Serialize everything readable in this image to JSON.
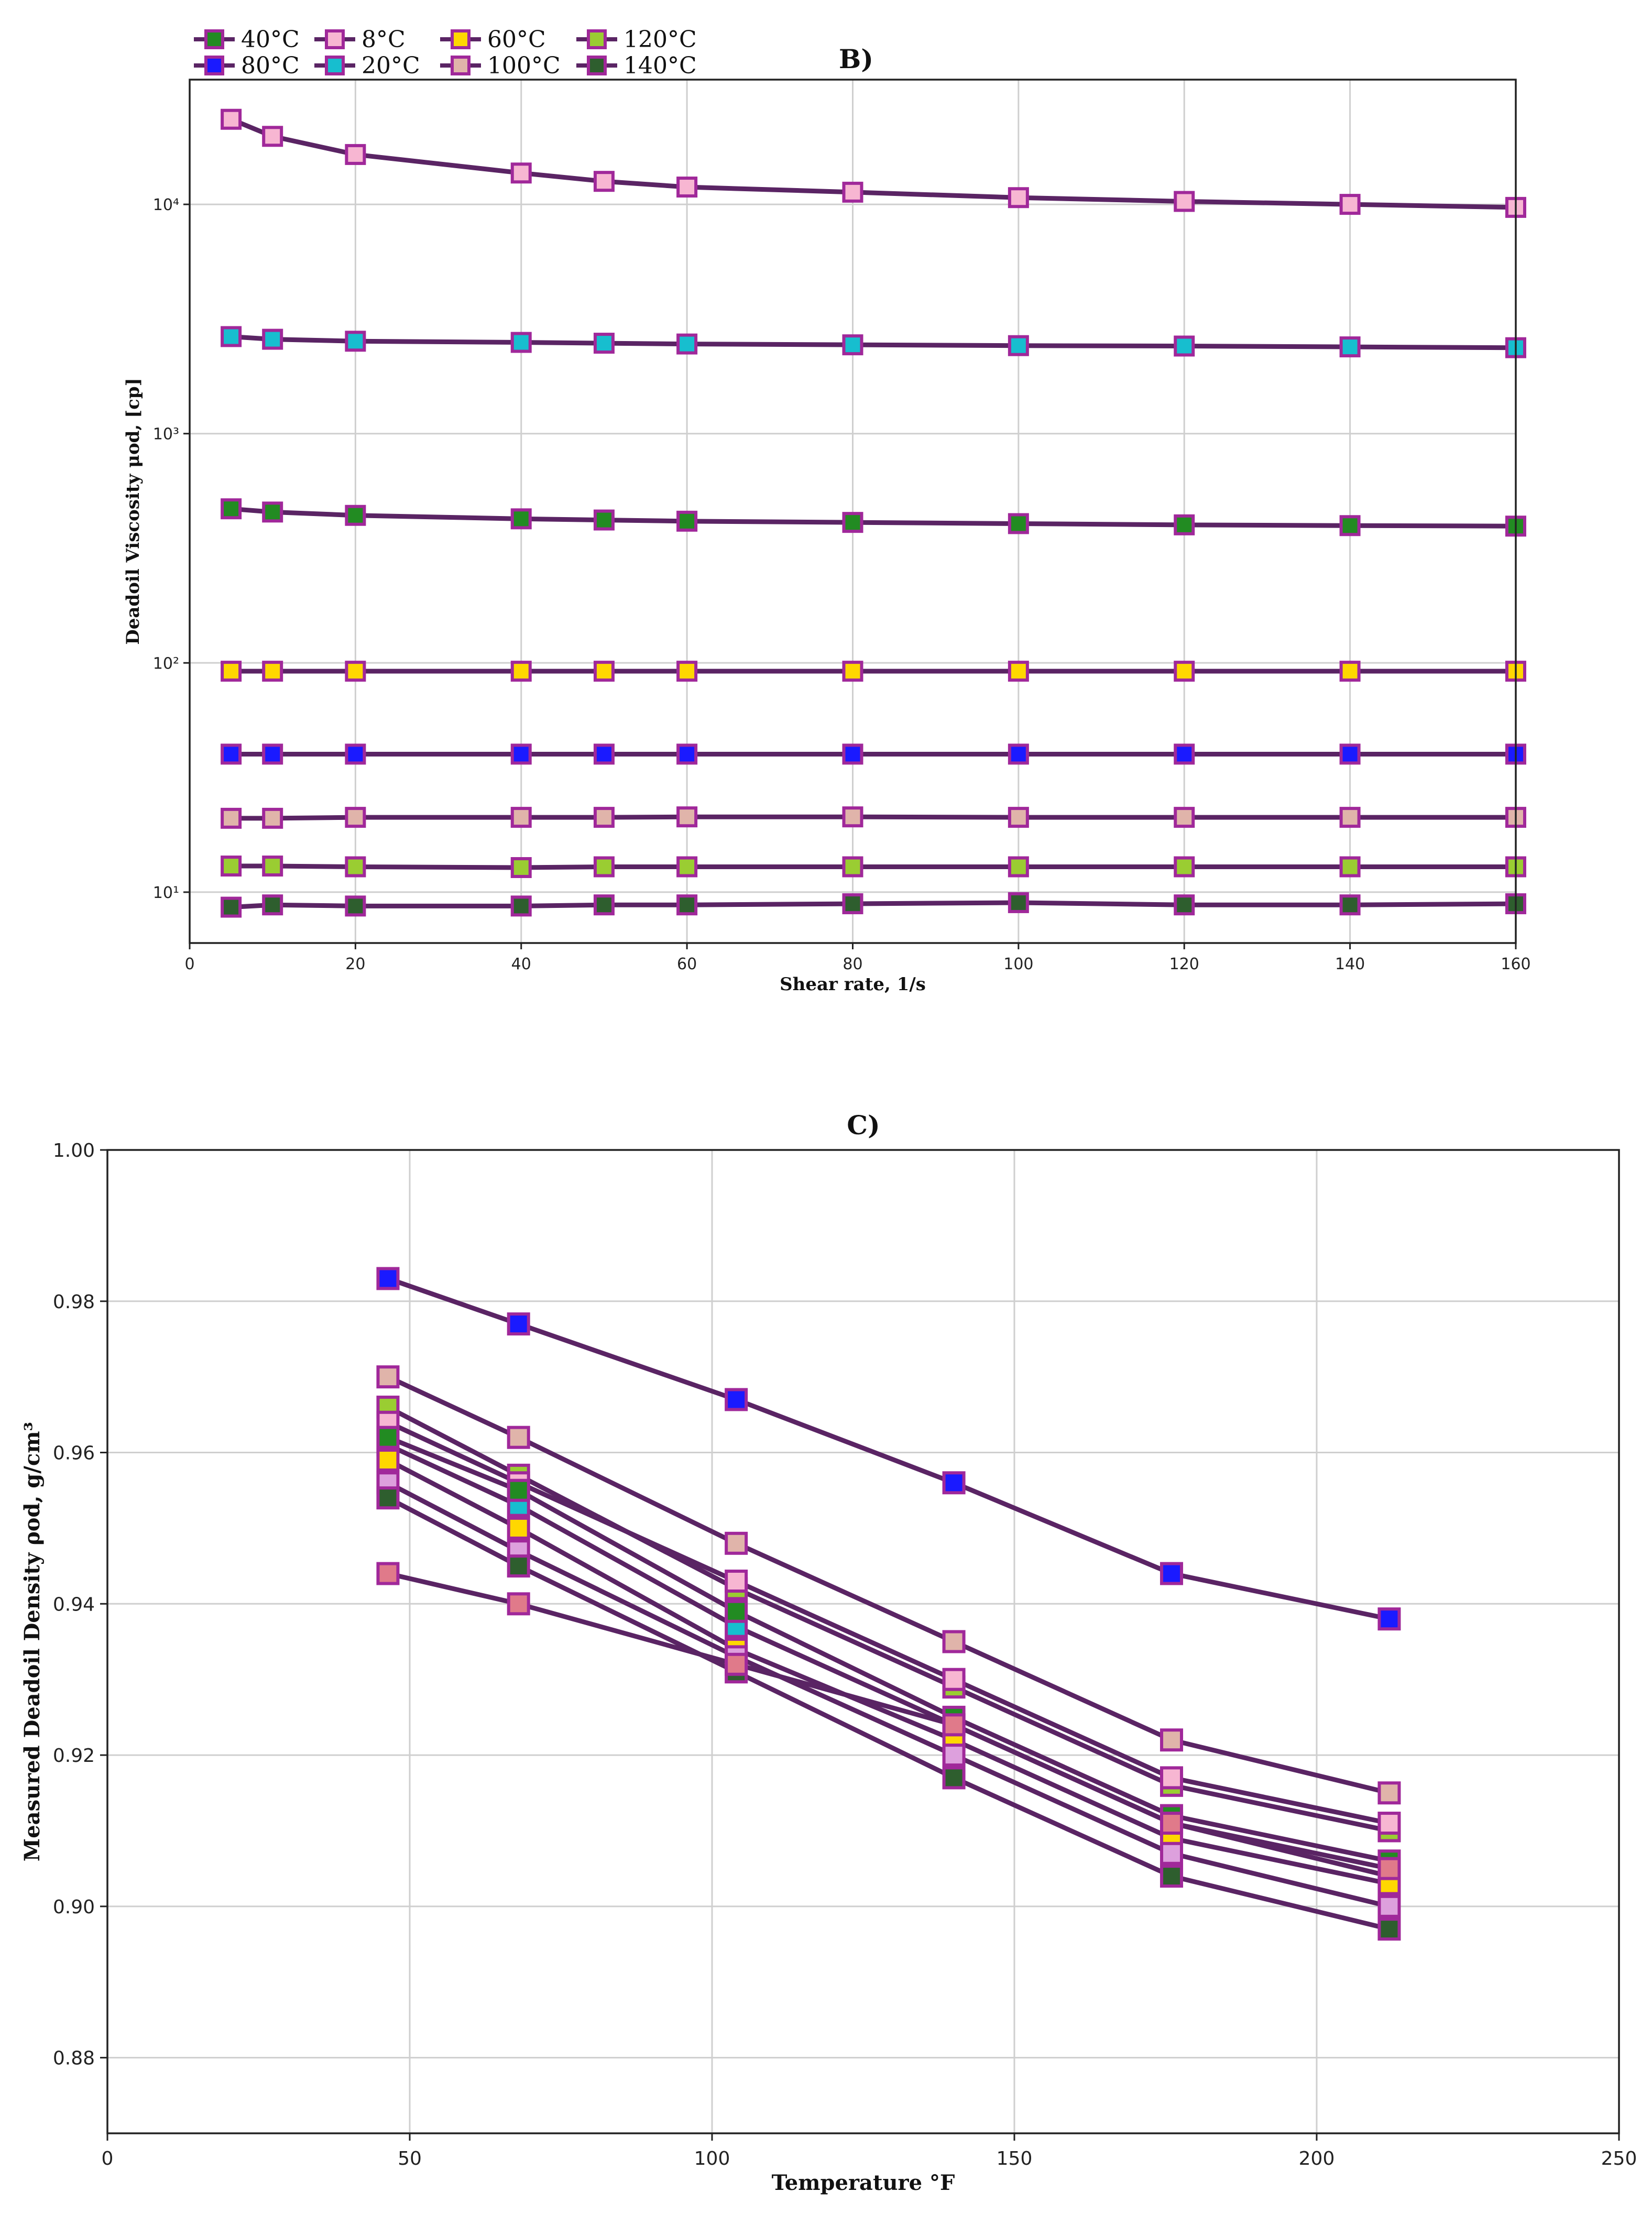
{
  "chart_data": [
    {
      "id": "B",
      "type": "line",
      "title": "B)",
      "xlabel": "Shear rate, 1/s",
      "ylabel": "Deadoil Viscosity μod, [cp]",
      "yscale": "log",
      "xlim": [
        0,
        160
      ],
      "ylim": [
        6,
        35000
      ],
      "xticks": [
        "0",
        "20",
        "40",
        "60",
        "80",
        "100",
        "120",
        "140",
        "160"
      ],
      "xtick_values": [
        0,
        20,
        40,
        60,
        80,
        100,
        120,
        140,
        160
      ],
      "yticks": [
        "10¹",
        "10²",
        "10³",
        "10⁴"
      ],
      "ytick_values": [
        10,
        100,
        1000,
        10000
      ],
      "grid": true,
      "legend": "top-left, outside",
      "x": [
        5,
        10,
        20,
        40,
        50,
        60,
        80,
        100,
        120,
        140,
        160
      ],
      "series": [
        {
          "name": "8°C",
          "color": "#f7b6d2",
          "values": [
            23500,
            19800,
            16500,
            13700,
            12600,
            11900,
            11300,
            10700,
            10300,
            10000,
            9700
          ]
        },
        {
          "name": "20°C",
          "color": "#17becf",
          "values": [
            2650,
            2580,
            2530,
            2500,
            2480,
            2460,
            2440,
            2420,
            2410,
            2390,
            2370
          ]
        },
        {
          "name": "40°C",
          "color": "#228b22",
          "values": [
            470,
            455,
            440,
            425,
            420,
            415,
            410,
            405,
            400,
            397,
            395
          ]
        },
        {
          "name": "60°C",
          "color": "#ffd700",
          "values": [
            92,
            92,
            92,
            92,
            92,
            92,
            92,
            92,
            92,
            92,
            92
          ]
        },
        {
          "name": "80°C",
          "color": "#1a1aff",
          "values": [
            40,
            40,
            40,
            40,
            40,
            40,
            40,
            40,
            40,
            40,
            40
          ]
        },
        {
          "name": "100°C",
          "color": "#e0b4aa",
          "values": [
            21,
            21,
            21.2,
            21.2,
            21.2,
            21.3,
            21.3,
            21.2,
            21.2,
            21.2,
            21.2
          ]
        },
        {
          "name": "120°C",
          "color": "#9acd32",
          "values": [
            13,
            13,
            12.9,
            12.8,
            12.9,
            12.9,
            12.9,
            12.9,
            12.9,
            12.9,
            12.9
          ]
        },
        {
          "name": "140°C",
          "color": "#2e5e2e",
          "values": [
            8.6,
            8.8,
            8.7,
            8.7,
            8.8,
            8.8,
            8.9,
            9.0,
            8.8,
            8.8,
            8.9
          ]
        }
      ],
      "legend_entries": [
        {
          "label": "40°C",
          "color": "#228b22"
        },
        {
          "label": "80°C",
          "color": "#1a1aff"
        },
        {
          "label": "8°C",
          "color": "#f7b6d2"
        },
        {
          "label": "20°C",
          "color": "#17becf"
        },
        {
          "label": "60°C",
          "color": "#ffd700"
        },
        {
          "label": "100°C",
          "color": "#e0b4aa"
        },
        {
          "label": "120°C",
          "color": "#9acd32"
        },
        {
          "label": "140°C",
          "color": "#2e5e2e"
        }
      ]
    },
    {
      "id": "C",
      "type": "line",
      "title": "C)",
      "xlabel": "Temperature °F",
      "ylabel": "Measured Deadoil Density ρod, g/cm³",
      "xlim": [
        0,
        250
      ],
      "ylim": [
        0.87,
        1.0
      ],
      "xticks": [
        "0",
        "50",
        "100",
        "150",
        "200",
        "250"
      ],
      "xtick_values": [
        0,
        50,
        100,
        150,
        200,
        250
      ],
      "yticks": [
        "0.88",
        "0.90",
        "0.92",
        "0.94",
        "0.96",
        "0.98",
        "1.00"
      ],
      "ytick_values": [
        0.88,
        0.9,
        0.92,
        0.94,
        0.96,
        0.98,
        1.0
      ],
      "grid": true,
      "x": [
        46.4,
        68,
        104,
        140,
        176,
        212
      ],
      "series": [
        {
          "color": "#1a1aff",
          "values": [
            0.983,
            0.977,
            0.967,
            0.956,
            0.944,
            0.938
          ]
        },
        {
          "color": "#e0b4aa",
          "values": [
            0.97,
            0.962,
            0.948,
            0.935,
            0.922,
            0.915
          ]
        },
        {
          "color": "#9acd32",
          "values": [
            0.966,
            0.957,
            0.942,
            0.929,
            0.916,
            0.91
          ]
        },
        {
          "color": "#f7b6d2",
          "values": [
            0.964,
            0.956,
            0.943,
            0.93,
            0.917,
            0.911
          ]
        },
        {
          "color": "#17becf",
          "values": [
            0.961,
            0.953,
            0.937,
            0.924,
            0.911,
            0.904
          ]
        },
        {
          "color": "#ffd700",
          "values": [
            0.959,
            0.95,
            0.934,
            0.922,
            0.909,
            0.903
          ]
        },
        {
          "color": "#dda0dd",
          "values": [
            0.956,
            0.947,
            0.933,
            0.92,
            0.907,
            0.9
          ]
        },
        {
          "color": "#2e5e2e",
          "values": [
            0.954,
            0.945,
            0.931,
            0.917,
            0.904,
            0.897
          ]
        },
        {
          "color": "#228b22",
          "values": [
            0.962,
            0.955,
            0.939,
            0.925,
            0.912,
            0.906
          ]
        },
        {
          "color": "#e07a8a",
          "values": [
            0.944,
            0.94,
            0.932,
            0.924,
            0.911,
            0.905
          ]
        }
      ]
    }
  ]
}
